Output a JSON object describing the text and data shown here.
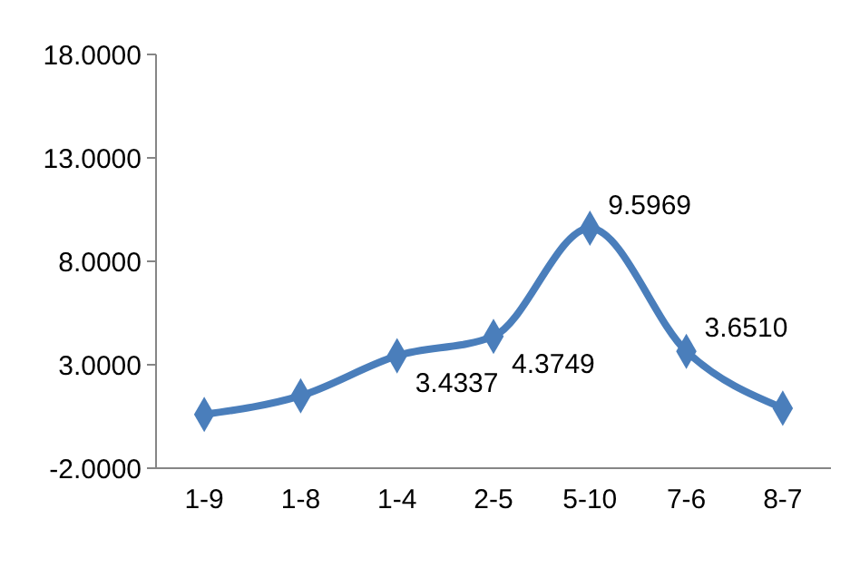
{
  "chart_data": {
    "type": "line",
    "categories": [
      "1-9",
      "1-8",
      "1-4",
      "2-5",
      "5-10",
      "7-6",
      "8-7"
    ],
    "values": [
      0.6,
      1.5,
      3.4337,
      4.3749,
      9.5969,
      3.651,
      0.9
    ],
    "value_labels": [
      null,
      null,
      "3.4337",
      "4.3749",
      "9.5969",
      "3.6510",
      null
    ],
    "color": "#4a7ebb",
    "marker": "diamond",
    "line_style": "solid",
    "grid": false,
    "ylim": [
      -2,
      18
    ],
    "yticks": [
      {
        "value": -2,
        "label": "-2.0000"
      },
      {
        "value": 3,
        "label": "3.0000"
      },
      {
        "value": 8,
        "label": "8.0000"
      },
      {
        "value": 13,
        "label": "13.0000"
      },
      {
        "value": 18,
        "label": "18.0000"
      }
    ]
  }
}
